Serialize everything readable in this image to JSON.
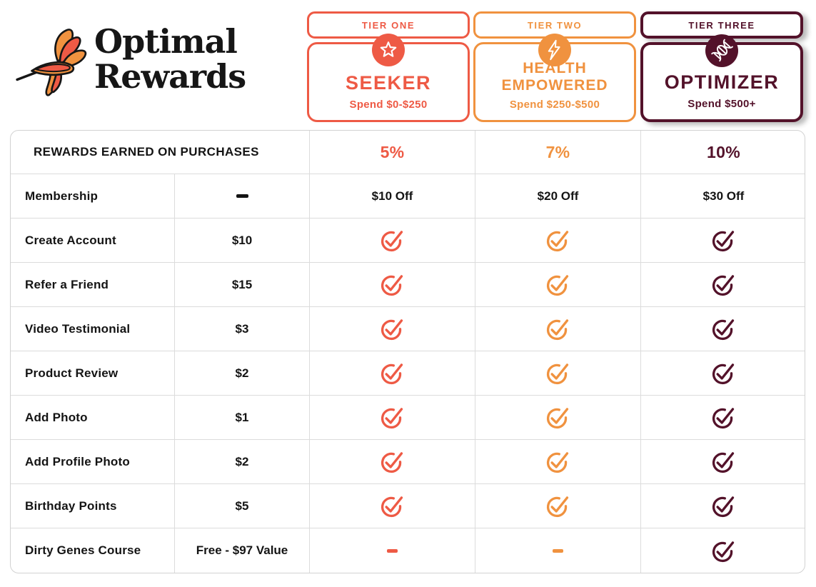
{
  "colors": {
    "tier1": "#EE5A45",
    "tier2": "#F0923F",
    "tier3": "#53122A",
    "text": "#141414",
    "grid": "#DCDCDC"
  },
  "logo": {
    "line1": "Optimal",
    "line2": "Rewards",
    "icon": "hummingbird-icon"
  },
  "tiers": [
    {
      "tier_label": "TIER ONE",
      "name": "SEEKER",
      "spend": "Spend $0-$250",
      "icon": "star-icon",
      "color": "#EE5A45"
    },
    {
      "tier_label": "TIER TWO",
      "name": "HEALTH EMPOWERED",
      "spend": "Spend $250-$500",
      "icon": "lightning-icon",
      "color": "#F0923F"
    },
    {
      "tier_label": "TIER THREE",
      "name": "OPTIMIZER",
      "spend": "Spend $500+",
      "icon": "dna-icon",
      "color": "#53122A"
    }
  ],
  "table": {
    "header": {
      "label": "REWARDS EARNED ON PURCHASES",
      "rates": [
        "5%",
        "7%",
        "10%"
      ]
    },
    "rows": [
      {
        "label": "Membership",
        "value": {
          "t": "dash"
        },
        "tiers": [
          {
            "t": "text",
            "v": "$10 Off"
          },
          {
            "t": "text",
            "v": "$20 Off"
          },
          {
            "t": "text",
            "v": "$30 Off"
          }
        ]
      },
      {
        "label": "Create Account",
        "value": {
          "t": "text",
          "v": "$10"
        },
        "tiers": [
          {
            "t": "check"
          },
          {
            "t": "check"
          },
          {
            "t": "check"
          }
        ]
      },
      {
        "label": "Refer a Friend",
        "value": {
          "t": "text",
          "v": "$15"
        },
        "tiers": [
          {
            "t": "check"
          },
          {
            "t": "check"
          },
          {
            "t": "check"
          }
        ]
      },
      {
        "label": "Video Testimonial",
        "value": {
          "t": "text",
          "v": "$3"
        },
        "tiers": [
          {
            "t": "check"
          },
          {
            "t": "check"
          },
          {
            "t": "check"
          }
        ]
      },
      {
        "label": "Product Review",
        "value": {
          "t": "text",
          "v": "$2"
        },
        "tiers": [
          {
            "t": "check"
          },
          {
            "t": "check"
          },
          {
            "t": "check"
          }
        ]
      },
      {
        "label": "Add Photo",
        "value": {
          "t": "text",
          "v": "$1"
        },
        "tiers": [
          {
            "t": "check"
          },
          {
            "t": "check"
          },
          {
            "t": "check"
          }
        ]
      },
      {
        "label": "Add Profile Photo",
        "value": {
          "t": "text",
          "v": "$2"
        },
        "tiers": [
          {
            "t": "check"
          },
          {
            "t": "check"
          },
          {
            "t": "check"
          }
        ]
      },
      {
        "label": "Birthday Points",
        "value": {
          "t": "text",
          "v": "$5"
        },
        "tiers": [
          {
            "t": "check"
          },
          {
            "t": "check"
          },
          {
            "t": "check"
          }
        ]
      },
      {
        "label": "Dirty Genes Course",
        "value": {
          "t": "text",
          "v": "Free - $97 Value"
        },
        "tiers": [
          {
            "t": "dash"
          },
          {
            "t": "dash"
          },
          {
            "t": "check"
          }
        ]
      }
    ]
  }
}
